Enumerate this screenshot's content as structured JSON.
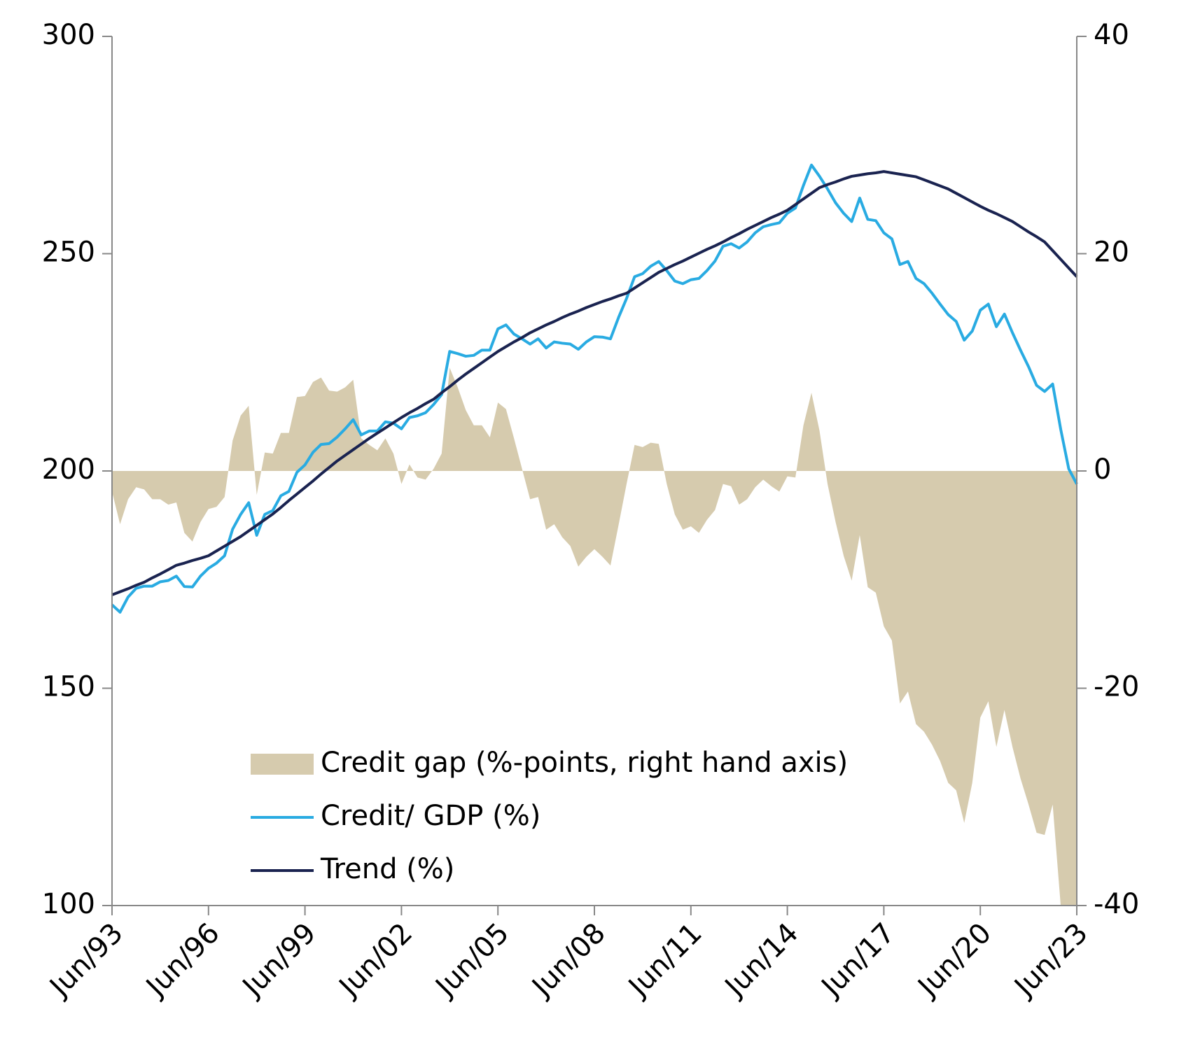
{
  "chart_data": {
    "type": "line",
    "categories": [
      "Jun/93",
      null,
      null,
      null,
      null,
      null,
      null,
      null,
      null,
      null,
      null,
      null,
      "Jun/96",
      null,
      null,
      null,
      null,
      null,
      null,
      null,
      null,
      null,
      null,
      null,
      "Jun/99",
      null,
      null,
      null,
      null,
      null,
      null,
      null,
      null,
      null,
      null,
      null,
      "Jun/02",
      null,
      null,
      null,
      null,
      null,
      null,
      null,
      null,
      null,
      null,
      null,
      "Jun/05",
      null,
      null,
      null,
      null,
      null,
      null,
      null,
      null,
      null,
      null,
      null,
      "Jun/08",
      null,
      null,
      null,
      null,
      null,
      null,
      null,
      null,
      null,
      null,
      null,
      "Jun/11",
      null,
      null,
      null,
      null,
      null,
      null,
      null,
      null,
      null,
      null,
      null,
      "Jun/14",
      null,
      null,
      null,
      null,
      null,
      null,
      null,
      null,
      null,
      null,
      null,
      "Jun/17",
      null,
      null,
      null,
      null,
      null,
      null,
      null,
      null,
      null,
      null,
      null,
      "Jun/20",
      null,
      null,
      null,
      null,
      null,
      null,
      null,
      null,
      null,
      null,
      null,
      "Jun/23"
    ],
    "series": [
      {
        "name": "Credit gap (%-points, right hand axis)",
        "type": "area",
        "axis": "y2",
        "color": "#d6cbae",
        "values": [
          -1.9,
          -4.9,
          -2.6,
          -1.5,
          -1.7,
          -2.6,
          -2.6,
          -3.1,
          -2.9,
          -5.7,
          -6.5,
          -4.7,
          -3.5,
          -3.3,
          -2.4,
          2.8,
          5.1,
          6,
          -2.2,
          1.7,
          1.6,
          3.5,
          3.5,
          6.8,
          6.9,
          8.2,
          8.6,
          7.4,
          7.3,
          7.7,
          8.4,
          3,
          2.4,
          1.9,
          3,
          1.6,
          -1.2,
          0.6,
          -0.6,
          -0.8,
          0.2,
          1.6,
          9.5,
          7.7,
          5.6,
          4.2,
          4.2,
          3.1,
          6.3,
          5.7,
          3,
          0.2,
          -2.6,
          -2.4,
          -5.4,
          -4.9,
          -6.1,
          -6.9,
          -8.8,
          -7.9,
          -7.2,
          -7.9,
          -8.7,
          -5,
          -1.2,
          2.4,
          2.2,
          2.6,
          2.5,
          -1.2,
          -4,
          -5.4,
          -5.1,
          -5.7,
          -4.5,
          -3.6,
          -1.2,
          -1.4,
          -3.1,
          -2.6,
          -1.5,
          -0.8,
          -1.4,
          -1.9,
          -0.5,
          -0.6,
          4.2,
          7.2,
          3.7,
          -1.2,
          -4.7,
          -7.8,
          -10.1,
          -5.9,
          -10.7,
          -11.2,
          -14.3,
          -15.6,
          -21.4,
          -20.3,
          -23.3,
          -24,
          -25.2,
          -26.7,
          -28.7,
          -29.4,
          -32.4,
          -28.7,
          -22.7,
          -21.2,
          -25.4,
          -22,
          -25.4,
          -28.3,
          -30.7,
          -33.3,
          -33.5,
          -30.7,
          -40,
          -40,
          -40
        ]
      },
      {
        "name": "Credit/ GDP (%)",
        "type": "line",
        "color": "#29abe2",
        "values": [
          169.2,
          167.5,
          171,
          173,
          173.5,
          173.5,
          174.5,
          174.8,
          175.8,
          173.4,
          173.3,
          175.8,
          177.6,
          178.8,
          180.5,
          186.6,
          190,
          192.7,
          185.2,
          190,
          190.9,
          194.3,
          195.3,
          199.7,
          201.4,
          204.3,
          206.1,
          206.3,
          207.8,
          209.7,
          211.8,
          208.3,
          209.2,
          209.2,
          211.3,
          211,
          209.7,
          212.3,
          212.7,
          213.4,
          215.3,
          217.6,
          227.5,
          227,
          226.4,
          226.6,
          227.8,
          227.8,
          232.7,
          233.6,
          231.5,
          230.4,
          229.2,
          230.4,
          228.3,
          229.7,
          229.4,
          229.2,
          228,
          229.7,
          230.9,
          230.8,
          230.4,
          235.3,
          239.7,
          244.7,
          245.4,
          247.1,
          248.2,
          246.1,
          243.7,
          243.1,
          244,
          244.3,
          246.1,
          248.3,
          251.7,
          252.3,
          251.3,
          252.7,
          254.8,
          256.2,
          256.7,
          257.1,
          259.3,
          260.5,
          265.7,
          270.4,
          267.8,
          264.9,
          261.7,
          259.3,
          257.4,
          262.8,
          257.9,
          257.6,
          254.8,
          253.4,
          247.5,
          248.2,
          244.3,
          243.1,
          240.9,
          238.4,
          236,
          234.4,
          230.1,
          232.2,
          237,
          238.4,
          233.2,
          236.1,
          231.8,
          227.8,
          224,
          219.7,
          218.3,
          220,
          209.6,
          200.5,
          197
        ]
      },
      {
        "name": "Trend (%)",
        "type": "line",
        "color": "#1a2350",
        "values": [
          171.5,
          172.2,
          172.9,
          173.7,
          174.4,
          175.4,
          176.3,
          177.3,
          178.3,
          178.8,
          179.4,
          179.9,
          180.5,
          181.6,
          182.7,
          183.8,
          184.9,
          186.2,
          187.5,
          188.8,
          190.1,
          191.6,
          193.2,
          194.7,
          196.2,
          197.7,
          199.3,
          200.8,
          202.3,
          203.6,
          204.9,
          206.2,
          207.5,
          208.7,
          209.9,
          211.1,
          212.3,
          213.4,
          214.4,
          215.5,
          216.5,
          218,
          219.4,
          220.9,
          222.3,
          223.6,
          224.9,
          226.2,
          227.5,
          228.6,
          229.7,
          230.7,
          231.8,
          232.7,
          233.6,
          234.4,
          235.3,
          236.1,
          236.8,
          237.6,
          238.3,
          239,
          239.6,
          240.3,
          240.9,
          242.1,
          243.3,
          244.5,
          245.7,
          246.6,
          247.5,
          248.3,
          249.2,
          250.1,
          251,
          251.8,
          252.7,
          253.7,
          254.6,
          255.6,
          256.5,
          257.4,
          258.3,
          259.1,
          260,
          261.3,
          262.6,
          263.9,
          265.2,
          265.9,
          266.5,
          267.2,
          267.8,
          268.1,
          268.4,
          268.6,
          268.9,
          268.6,
          268.3,
          268,
          267.7,
          267,
          266.3,
          265.6,
          264.9,
          263.9,
          262.9,
          261.9,
          260.9,
          260,
          259.2,
          258.3,
          257.4,
          256.2,
          255,
          253.9,
          252.7,
          250.7,
          248.7,
          246.7,
          244.7
        ]
      }
    ],
    "ylim": [
      100,
      300
    ],
    "yticks": [
      100,
      150,
      200,
      250,
      300
    ],
    "y2lim": [
      -40,
      40
    ],
    "y2ticks": [
      -40,
      -20,
      0,
      20,
      40
    ],
    "legend": "lower left",
    "grid": false
  }
}
